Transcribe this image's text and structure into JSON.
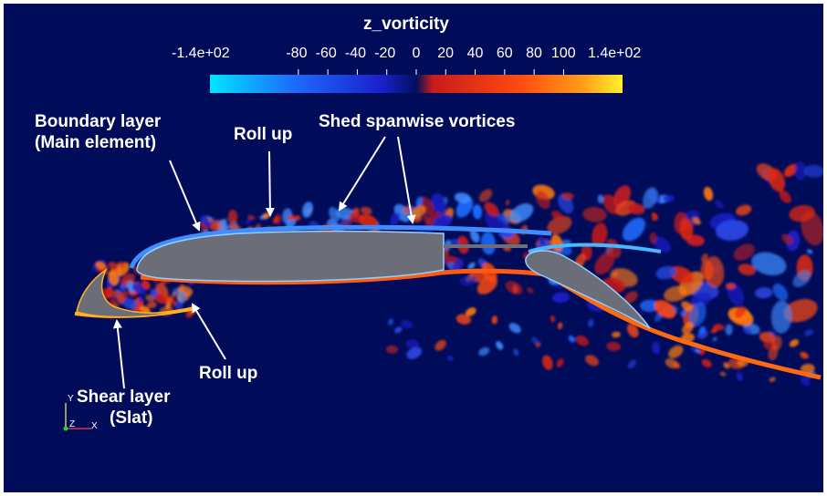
{
  "colorbar": {
    "title": "z_vorticity",
    "min_label": "-1.4e+02",
    "max_label": "1.4e+02",
    "min": -140,
    "max": 140,
    "tick_labels": [
      "-80",
      "-60",
      "-40",
      "-20",
      "0",
      "20",
      "40",
      "60",
      "80",
      "100"
    ],
    "tick_values": [
      -80,
      -60,
      -40,
      -20,
      0,
      20,
      40,
      60,
      80,
      100
    ],
    "colors": {
      "neg_extreme": "#00e5ff",
      "neg_mid": "#1e6cff",
      "neg_low": "#1b1fc8",
      "background": "#000b5a",
      "pos_low": "#c81b1b",
      "pos_mid": "#ff4a10",
      "pos_high": "#ff9a1a",
      "pos_extreme": "#fff22a"
    }
  },
  "annotations": {
    "boundary_layer_line1": "Boundary layer",
    "boundary_layer_line2": "(Main element)",
    "roll_up_top": "Roll up",
    "shed_vortices": "Shed spanwise vortices",
    "roll_up_bottom": "Roll up",
    "shear_layer_line1": "Shear layer",
    "shear_layer_line2": "(Slat)"
  },
  "axes_triad": {
    "y_label": "Y",
    "z_label": "Z",
    "x_label": "X"
  },
  "colors": {
    "airfoil": "#6b6e78",
    "arrow": "#ffffff",
    "text": "#ffffff"
  }
}
